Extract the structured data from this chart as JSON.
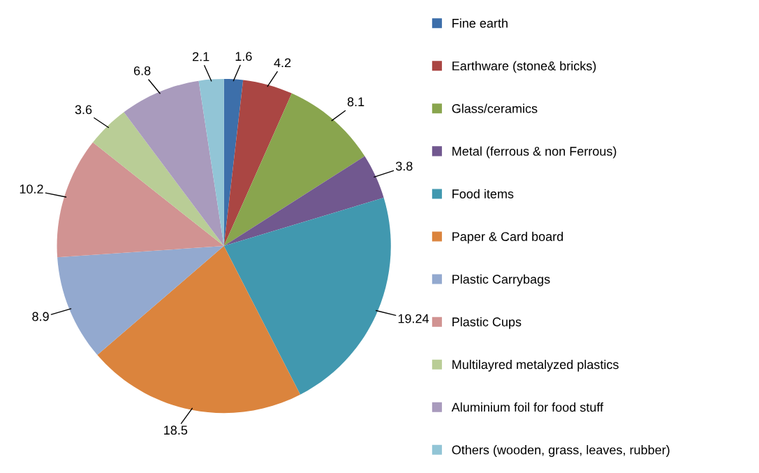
{
  "chart_data": {
    "type": "pie",
    "categories": [
      "Fine earth",
      "Earthware (stone& bricks)",
      "Glass/ceramics",
      "Metal (ferrous & non Ferrous)",
      "Food items",
      "Paper & Card board",
      "Plastic Carrybags",
      "Plastic Cups",
      "Multilayred metalyzed plastics",
      "Aluminium foil for food stuff",
      "Others (wooden, grass, leaves, rubber)"
    ],
    "values": [
      1.6,
      4.2,
      8.1,
      3.8,
      19.24,
      18.5,
      8.9,
      10.2,
      3.6,
      6.8,
      2.1
    ],
    "colors": [
      "#3d6faa",
      "#aa4643",
      "#89a54e",
      "#71588f",
      "#4198af",
      "#db843d",
      "#93a9cf",
      "#d19392",
      "#b9cd96",
      "#a99bbd",
      "#92c5d6"
    ],
    "data_labels": true,
    "legend": "right"
  }
}
